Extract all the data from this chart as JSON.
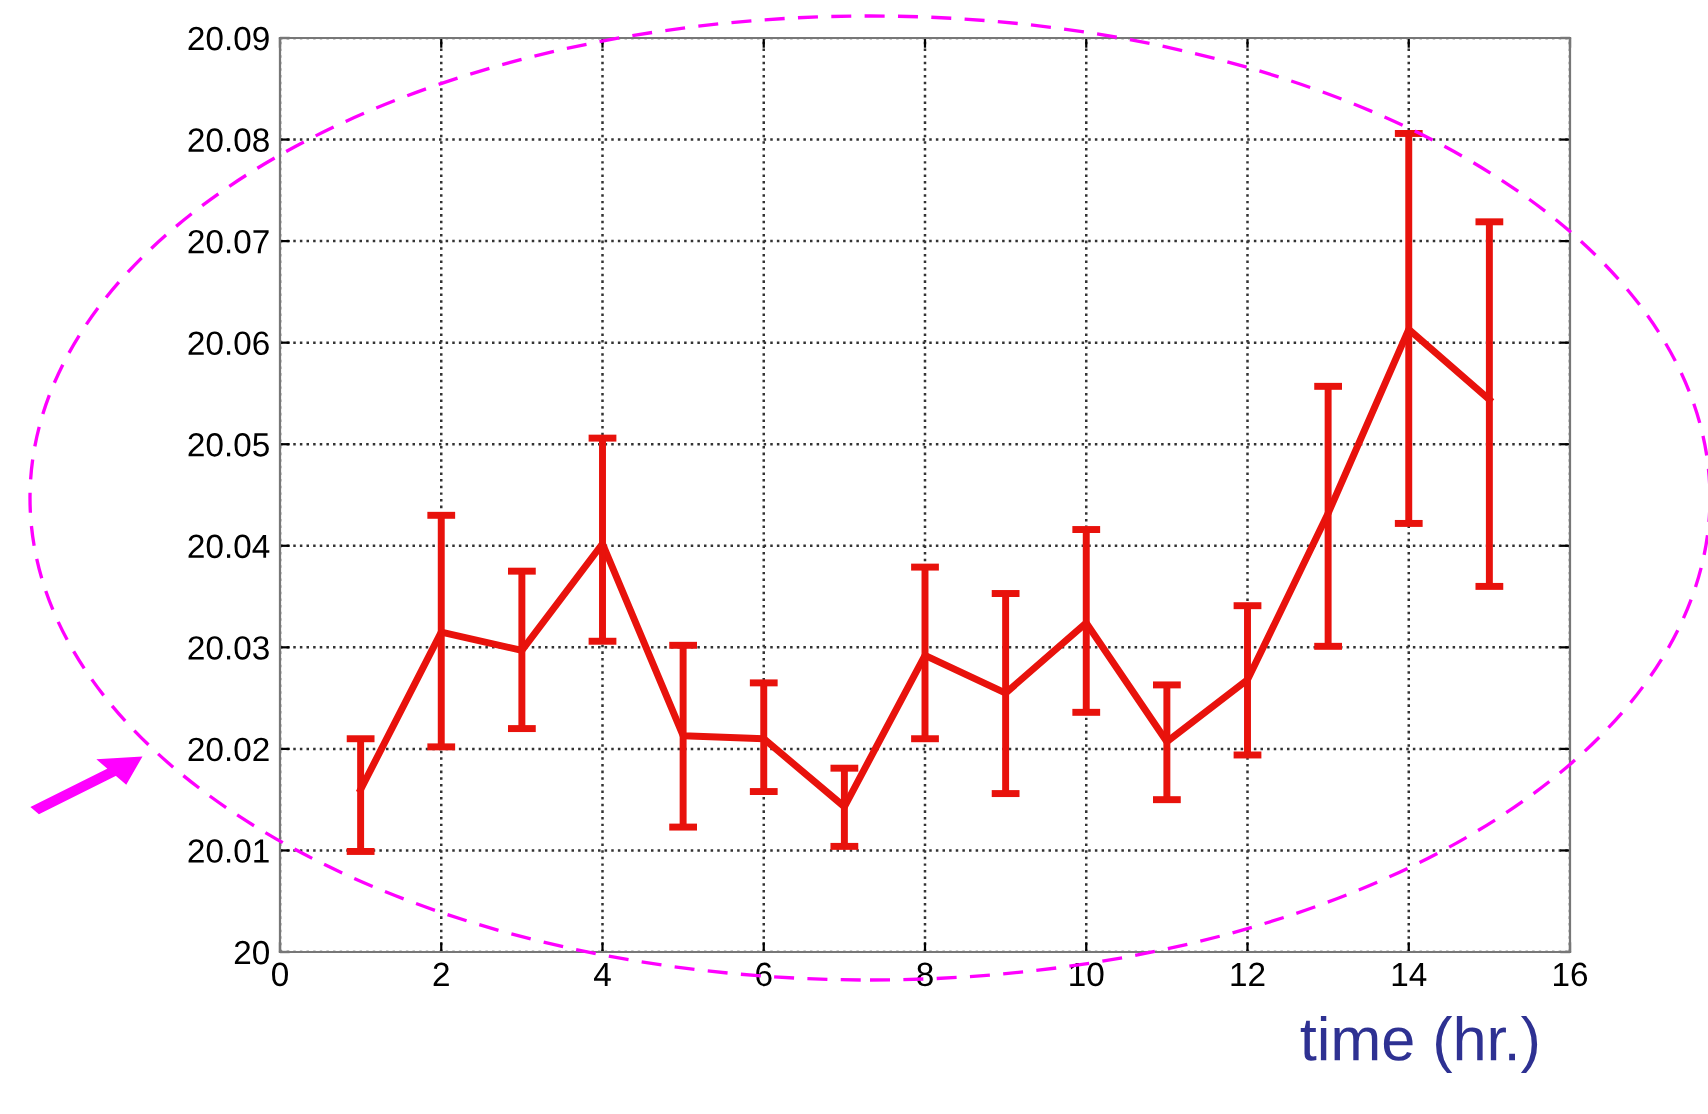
{
  "chart_data": {
    "type": "line",
    "xlabel": "time (hr.)",
    "x": [
      1,
      2,
      3,
      4,
      5,
      6,
      7,
      8,
      9,
      10,
      11,
      12,
      13,
      14,
      15
    ],
    "series": [
      {
        "color": "#e8120c",
        "values": [
          20.016,
          20.0315,
          20.0297,
          20.0402,
          20.0213,
          20.021,
          20.0143,
          20.0292,
          20.0255,
          20.0324,
          20.0207,
          20.0268,
          20.0432,
          20.0613,
          20.0544
        ],
        "errors": [
          [
            20.0099,
            20.021
          ],
          [
            20.0202,
            20.043
          ],
          [
            20.022,
            20.0375
          ],
          [
            20.0306,
            20.0506
          ],
          [
            20.0123,
            20.0302
          ],
          [
            20.0158,
            20.0265
          ],
          [
            20.0104,
            20.0181
          ],
          [
            20.021,
            20.0379
          ],
          [
            20.0156,
            20.0353
          ],
          [
            20.0236,
            20.0416
          ],
          [
            20.015,
            20.0263
          ],
          [
            20.0194,
            20.0341
          ],
          [
            20.0301,
            20.0557
          ],
          [
            20.0422,
            20.0806
          ],
          [
            20.036,
            20.0719
          ]
        ]
      }
    ],
    "xlim": [
      0,
      16
    ],
    "xticks": [
      0,
      2,
      4,
      6,
      8,
      10,
      12,
      14,
      16
    ],
    "ylim": [
      20,
      20.09
    ],
    "yticks": [
      20,
      20.01,
      20.02,
      20.03,
      20.04,
      20.05,
      20.06,
      20.07,
      20.08,
      20.09
    ],
    "grid": true,
    "marker": "none",
    "line_style": "solid"
  }
}
